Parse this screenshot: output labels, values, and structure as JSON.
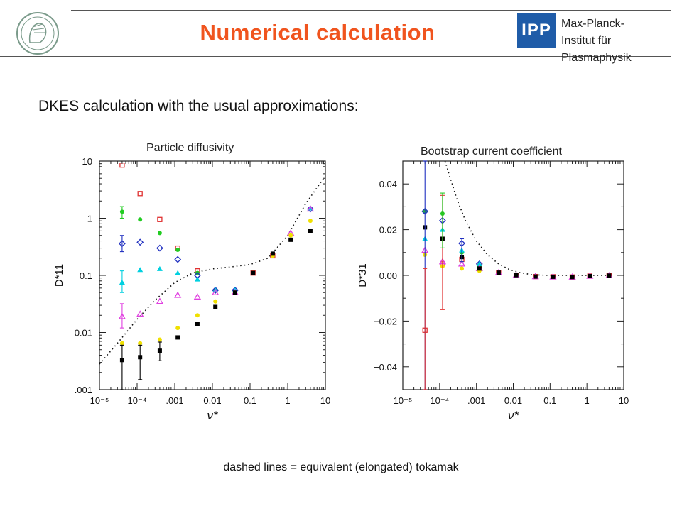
{
  "header": {
    "title": "Numerical calculation",
    "institute_lines": [
      "Max-Planck-",
      "Institut für",
      "Plasmaphysik"
    ],
    "ipp_logo_text": "IPP",
    "title_color": "#f0541e",
    "ipp_color": "#1f5ca8"
  },
  "subtitle": "DKES calculation with the usual approximations:",
  "footer": "dashed lines = equivalent (elongated) tokamak",
  "chart_data": [
    {
      "type": "scatter",
      "title": "Particle diffusivity",
      "ylabel": "D*11",
      "xlabel": "ν*",
      "xscale": "log",
      "yscale": "log",
      "xlim": [
        1e-05,
        10
      ],
      "ylim": [
        0.001,
        10
      ],
      "xticks": [
        "10⁻⁵",
        "10⁻⁴",
        ".001",
        "0.01",
        "0.1",
        "1",
        "10"
      ],
      "yticks": [
        "10",
        "1",
        "0.1",
        "0.01",
        ".001"
      ],
      "x": [
        4e-05,
        0.00012,
        0.0004,
        0.0012,
        0.004,
        0.012,
        0.04,
        0.12,
        0.4,
        1.2,
        4
      ],
      "series": [
        {
          "color": "#e03030",
          "marker": "square-open",
          "values": [
            8.5,
            2.7,
            0.95,
            0.3,
            0.12,
            null,
            null,
            0.11,
            0.22,
            null,
            null
          ]
        },
        {
          "color": "#22cc22",
          "marker": "circle",
          "values": [
            1.3,
            0.95,
            0.55,
            0.28,
            0.11,
            0.055,
            null,
            null,
            null,
            null,
            null
          ]
        },
        {
          "color": "#2030c0",
          "marker": "diamond-open",
          "values": [
            0.36,
            0.38,
            0.3,
            0.19,
            0.1,
            0.055,
            0.055,
            null,
            null,
            null,
            1.45
          ]
        },
        {
          "color": "#00d0e0",
          "marker": "triangle",
          "values": [
            0.075,
            0.125,
            0.13,
            0.11,
            0.085,
            0.055,
            0.055,
            null,
            null,
            null,
            1.5
          ]
        },
        {
          "color": "#e040e0",
          "marker": "triangle-open",
          "values": [
            0.019,
            0.021,
            0.035,
            0.045,
            0.042,
            0.05,
            0.05,
            null,
            null,
            0.55,
            1.45
          ]
        },
        {
          "color": "#f0e000",
          "marker": "circle",
          "values": [
            0.0065,
            0.0065,
            0.0075,
            0.012,
            0.02,
            0.035,
            0.05,
            0.11,
            0.22,
            0.5,
            0.9
          ]
        },
        {
          "color": "#000000",
          "marker": "square",
          "values": [
            0.0033,
            0.0037,
            0.0048,
            0.0082,
            0.014,
            0.028,
            0.05,
            0.11,
            0.24,
            0.42,
            0.6
          ]
        }
      ],
      "tokamak_curve": {
        "x": [
          1e-05,
          3e-05,
          0.0001,
          0.0003,
          0.001,
          0.003,
          0.01,
          0.03,
          0.1,
          0.3,
          1,
          3,
          10
        ],
        "y": [
          0.0028,
          0.0065,
          0.017,
          0.037,
          0.075,
          0.11,
          0.13,
          0.14,
          0.155,
          0.2,
          0.5,
          1.8,
          5.5
        ]
      }
    },
    {
      "type": "scatter",
      "title": "Bootstrap current coefficient",
      "ylabel": "D*31",
      "xlabel": "ν*",
      "xscale": "log",
      "yscale": "linear",
      "xlim": [
        1e-05,
        10
      ],
      "ylim": [
        -0.05,
        0.05
      ],
      "xticks": [
        "10⁻⁵",
        "10⁻⁴",
        ".001",
        "0.01",
        "0.1",
        "1",
        "10"
      ],
      "yticks": [
        "0.04",
        "0.02",
        "0.00",
        "−0.02",
        "−0.04"
      ],
      "x": [
        4e-05,
        0.00012,
        0.0004,
        0.0012,
        0.004,
        0.012,
        0.04,
        0.12,
        0.4,
        1.2,
        4
      ],
      "series": [
        {
          "color": "#e03030",
          "marker": "square-open",
          "values": [
            -0.024,
            0.005,
            0.007,
            0.004,
            0.0012,
            0.0001,
            -0.0005,
            -0.0006,
            -0.0007,
            -0.0003,
            -0.0001
          ]
        },
        {
          "color": "#22cc22",
          "marker": "circle",
          "values": [
            0.028,
            0.027,
            0.01,
            0.004,
            null,
            null,
            null,
            null,
            null,
            null,
            null
          ]
        },
        {
          "color": "#2030c0",
          "marker": "diamond-open",
          "values": [
            0.028,
            0.024,
            0.014,
            0.005,
            null,
            null,
            null,
            null,
            null,
            null,
            null
          ]
        },
        {
          "color": "#00d0e0",
          "marker": "triangle",
          "values": [
            0.016,
            0.02,
            0.011,
            0.005,
            null,
            null,
            null,
            null,
            null,
            null,
            null
          ]
        },
        {
          "color": "#e040e0",
          "marker": "triangle-open",
          "values": [
            0.011,
            0.006,
            0.005,
            0.003,
            0.0012,
            0.0001,
            -0.0005,
            -0.0006,
            -0.0007,
            -0.0003,
            -0.0001
          ]
        },
        {
          "color": "#f0e000",
          "marker": "circle",
          "values": [
            0.009,
            0.004,
            0.003,
            0.002,
            null,
            null,
            null,
            null,
            null,
            null,
            null
          ]
        },
        {
          "color": "#000000",
          "marker": "square",
          "values": [
            0.021,
            0.016,
            0.008,
            0.003,
            0.0012,
            0.0001,
            -0.0005,
            -0.0006,
            -0.0007,
            -0.0003,
            -0.0001
          ]
        }
      ],
      "tokamak_curve": {
        "x": [
          0.00014,
          0.0002,
          0.0003,
          0.0005,
          0.001,
          0.002,
          0.004,
          0.008,
          0.015,
          0.03,
          0.06,
          0.12,
          0.3,
          1,
          4
        ],
        "y": [
          0.05,
          0.042,
          0.033,
          0.024,
          0.015,
          0.009,
          0.005,
          0.0025,
          0.0012,
          0.0004,
          0.0001,
          0.0,
          0.0,
          0.0,
          0.0
        ]
      }
    }
  ]
}
